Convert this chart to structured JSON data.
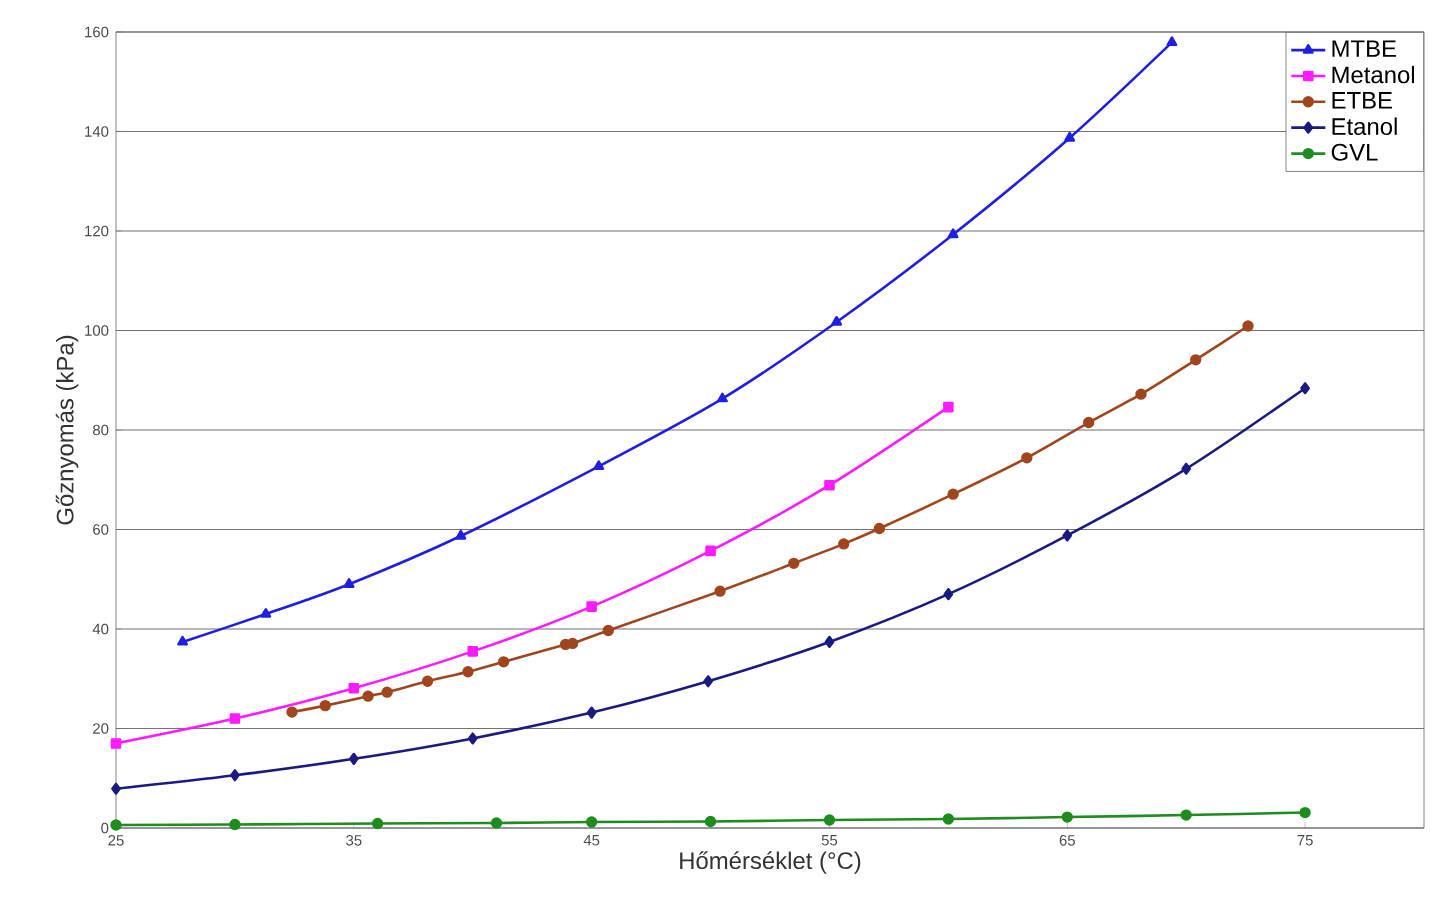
{
  "chart_data": {
    "type": "line",
    "xlabel": "Hőmérséklet (°C)",
    "ylabel": "Gőznyomás (kPa)",
    "xlim": [
      25,
      80
    ],
    "ylim": [
      0,
      160
    ],
    "xticks": [
      25,
      35,
      45,
      55,
      65,
      75
    ],
    "yticks": [
      0,
      20,
      40,
      60,
      80,
      100,
      120,
      140,
      160
    ],
    "grid": "y",
    "legend": "top right",
    "line_style": "solid",
    "series": [
      {
        "name": "MTBE",
        "color": "#1f1fe0",
        "marker": "triangle",
        "x": [
          27.8,
          31.3,
          34.8,
          39.5,
          45.3,
          50.5,
          55.3,
          60.2,
          65.1,
          69.4
        ],
        "values": [
          37.4,
          43,
          49,
          58.7,
          72.7,
          86.3,
          101.7,
          119.3,
          138.7,
          157.9
        ]
      },
      {
        "name": "Metanol",
        "color": "#ff1aff",
        "marker": "square",
        "x": [
          25,
          30,
          35,
          40,
          45,
          50,
          55,
          60
        ],
        "values": [
          17,
          22,
          28.1,
          35.5,
          44.5,
          55.7,
          68.9,
          84.6
        ]
      },
      {
        "name": "ETBE",
        "color": "#a0461e",
        "marker": "circle",
        "x": [
          32.4,
          33.8,
          35.6,
          36.4,
          38.1,
          39.8,
          41.3,
          43.9,
          44.2,
          45.7,
          50.4,
          53.5,
          55.6,
          57.1,
          60.2,
          63.3,
          65.9,
          68.1,
          70.4,
          72.6
        ],
        "values": [
          23.3,
          24.6,
          26.5,
          27.3,
          29.5,
          31.4,
          33.4,
          36.9,
          37.1,
          39.7,
          47.6,
          53.2,
          57.1,
          60.2,
          67.1,
          74.4,
          81.5,
          87.2,
          94.1,
          100.9
        ]
      },
      {
        "name": "Etanol",
        "color": "#1a1a80",
        "marker": "diamond",
        "x": [
          25,
          30,
          35,
          40,
          45,
          49.9,
          55,
          60,
          65,
          70,
          75
        ],
        "values": [
          7.9,
          10.6,
          13.9,
          18.0,
          23.2,
          29.5,
          37.4,
          47.0,
          58.8,
          72.2,
          88.4
        ]
      },
      {
        "name": "GVL",
        "color": "#1e8c1e",
        "marker": "circle",
        "x": [
          25,
          30,
          36,
          41,
          45,
          50,
          55,
          60,
          65,
          70,
          75
        ],
        "values": [
          0.6,
          0.7,
          0.9,
          1.0,
          1.2,
          1.3,
          1.6,
          1.8,
          2.2,
          2.6,
          3.1
        ]
      }
    ]
  }
}
